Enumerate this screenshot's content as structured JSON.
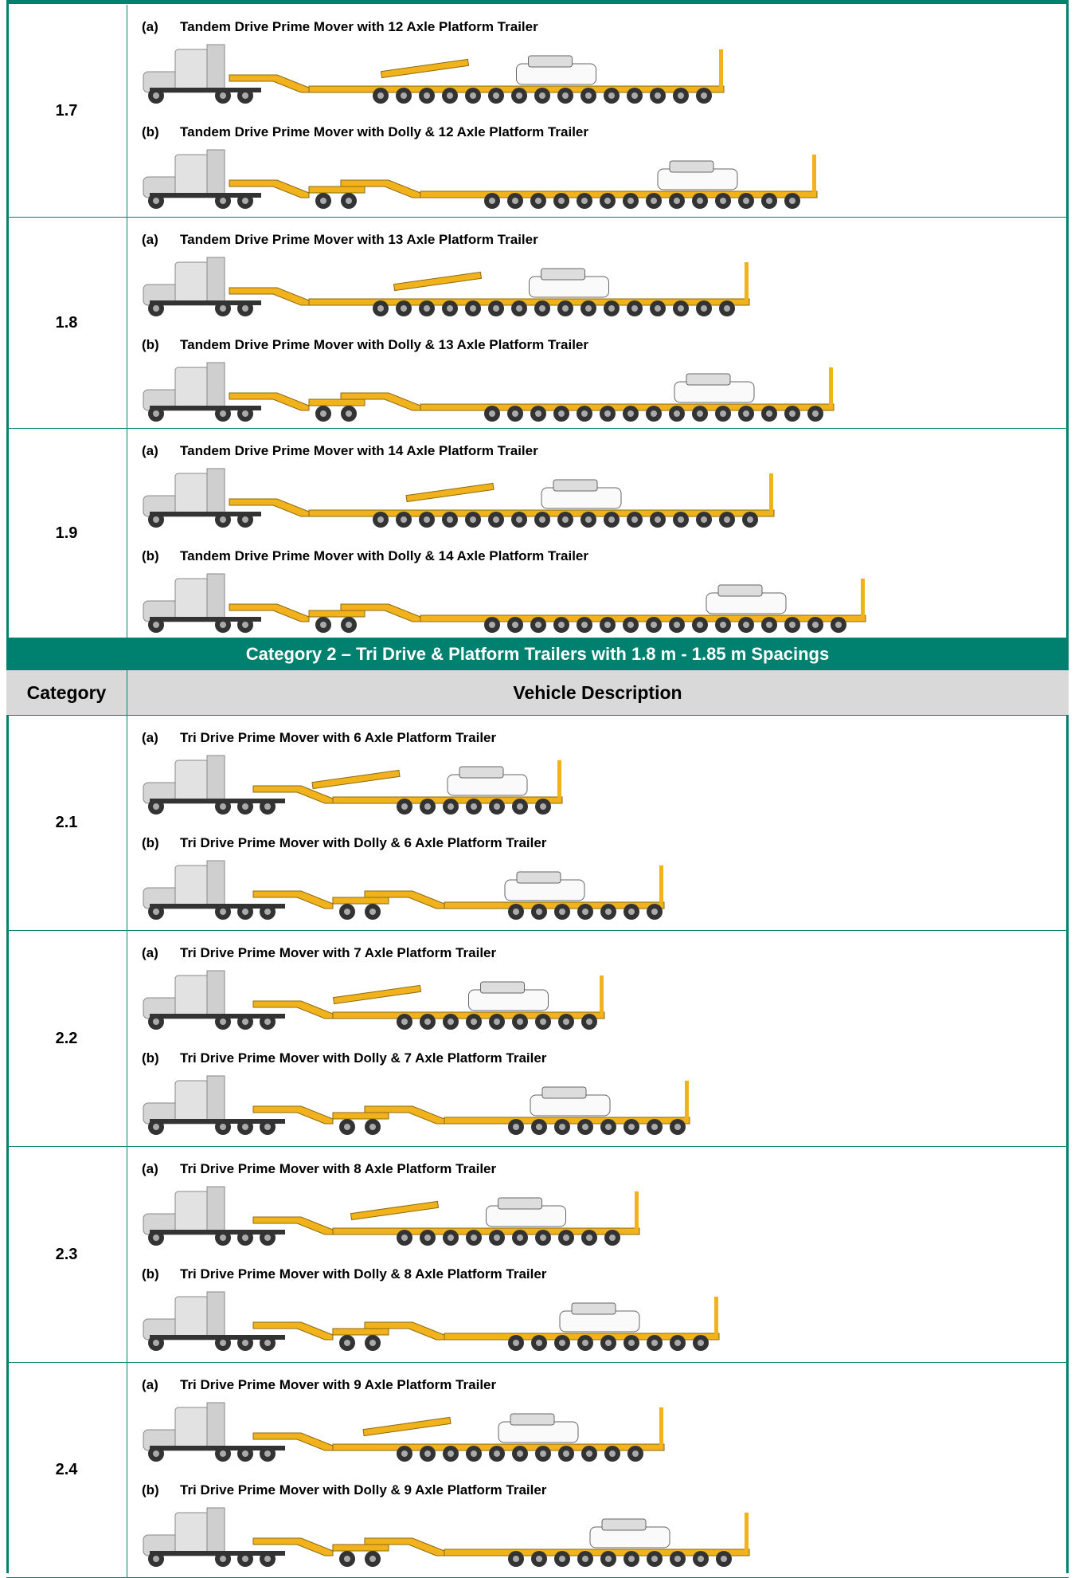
{
  "rows": [
    {
      "category": "1.7",
      "items": [
        {
          "tag": "(a)",
          "description": "Tandem Drive Prime Mover with 12 Axle Platform Trailer"
        },
        {
          "tag": "(b)",
          "description": "Tandem Drive Prime Mover with Dolly & 12 Axle Platform Trailer"
        }
      ]
    },
    {
      "category": "1.8",
      "items": [
        {
          "tag": "(a)",
          "description": "Tandem Drive Prime Mover with 13 Axle Platform Trailer"
        },
        {
          "tag": "(b)",
          "description": "Tandem Drive Prime Mover with Dolly & 13 Axle Platform Trailer"
        }
      ]
    },
    {
      "category": "1.9",
      "items": [
        {
          "tag": "(a)",
          "description": "Tandem Drive Prime Mover with 14 Axle Platform Trailer"
        },
        {
          "tag": "(b)",
          "description": "Tandem Drive Prime Mover with Dolly & 14 Axle Platform Trailer"
        }
      ]
    }
  ],
  "category_2": {
    "title": "Category 2 – Tri Drive & Platform Trailers with 1.8 m - 1.85 m Spacings",
    "header": {
      "category": "Category",
      "description": "Vehicle Description"
    },
    "rows": [
      {
        "category": "2.1",
        "items": [
          {
            "tag": "(a)",
            "description": "Tri Drive Prime Mover with 6 Axle Platform Trailer"
          },
          {
            "tag": "(b)",
            "description": "Tri Drive Prime Mover with Dolly & 6 Axle Platform Trailer"
          }
        ]
      },
      {
        "category": "2.2",
        "items": [
          {
            "tag": "(a)",
            "description": "Tri Drive Prime Mover with 7 Axle Platform Trailer"
          },
          {
            "tag": "(b)",
            "description": "Tri Drive Prime Mover with Dolly & 7 Axle Platform Trailer"
          }
        ]
      },
      {
        "category": "2.3",
        "items": [
          {
            "tag": "(a)",
            "description": "Tri Drive Prime Mover with 8 Axle Platform Trailer"
          },
          {
            "tag": "(b)",
            "description": "Tri Drive Prime Mover with Dolly & 8 Axle Platform Trailer"
          }
        ]
      },
      {
        "category": "2.4",
        "items": [
          {
            "tag": "(a)",
            "description": "Tri Drive Prime Mover with 9 Axle Platform Trailer"
          },
          {
            "tag": "(b)",
            "description": "Tri Drive Prime Mover with Dolly & 9 Axle Platform Trailer"
          }
        ]
      }
    ]
  }
}
